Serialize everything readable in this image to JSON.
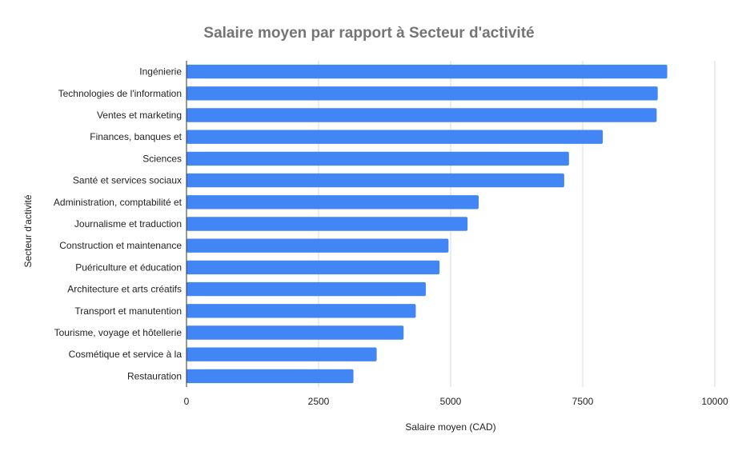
{
  "chart_data": {
    "type": "bar",
    "orientation": "horizontal",
    "title": "Salaire moyen par rapport à Secteur d'activité",
    "xlabel": "Salaire moyen (CAD)",
    "ylabel": "Secteur d'activité",
    "xlim": [
      0,
      10000
    ],
    "xticks": [
      0,
      2500,
      5000,
      7500,
      10000
    ],
    "xtick_labels": [
      "0",
      "2500",
      "5000",
      "7500",
      "10000"
    ],
    "grid": true,
    "legend": "none",
    "bar_color": "#4285f4",
    "categories": [
      "Ingénierie",
      "Technologies de l'information",
      "Ventes et marketing",
      "Finances, banques et",
      "Sciences",
      "Santé et services sociaux",
      "Administration, comptabilité et",
      "Journalisme et traduction",
      "Construction et maintenance",
      "Puériculture et éducation",
      "Architecture et arts créatifs",
      "Transport et manutention",
      "Tourisme, voyage et hôtellerie",
      "Cosmétique et service à la",
      "Restauration"
    ],
    "series": [
      {
        "name": "Salaire moyen (CAD)",
        "values": [
          9100,
          8920,
          8900,
          7880,
          7240,
          7150,
          5530,
          5320,
          4960,
          4790,
          4530,
          4340,
          4110,
          3600,
          3160
        ]
      }
    ]
  }
}
